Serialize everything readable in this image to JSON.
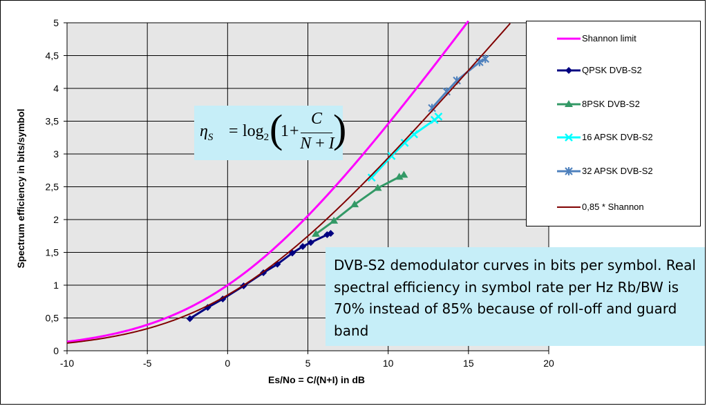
{
  "chart_data": {
    "type": "line",
    "xlabel": "Es/No = C/(N+I) in dB",
    "ylabel": "Spectrum efficiency in bits/symbol",
    "xlim": [
      -10,
      20
    ],
    "ylim": [
      0,
      5
    ],
    "xticks": [
      -10,
      -5,
      0,
      5,
      10,
      15,
      20
    ],
    "xtick_labels": [
      "-10",
      "-5",
      "0",
      "5",
      "10",
      "15",
      "20"
    ],
    "yticks": [
      0,
      0.5,
      1,
      1.5,
      2,
      2.5,
      3,
      3.5,
      4,
      4.5,
      5
    ],
    "ytick_labels": [
      "0",
      "0,5",
      "1",
      "1,5",
      "2",
      "2,5",
      "3",
      "3,5",
      "4",
      "4,5",
      "5"
    ],
    "grid": true,
    "legend_position": "right",
    "series": [
      {
        "name": "Shannon limit",
        "color": "#ff00ff",
        "marker": "none",
        "formula": "log2(1+10^(x/10))",
        "x_range": [
          -10,
          15.0
        ]
      },
      {
        "name": "QPSK DVB-S2",
        "color": "#000080",
        "marker": "diamond",
        "x": [
          -2.35,
          -1.24,
          -0.3,
          1.0,
          2.23,
          3.1,
          4.03,
          4.68,
          5.18,
          6.2,
          6.42
        ],
        "y": [
          0.49,
          0.66,
          0.79,
          0.99,
          1.19,
          1.32,
          1.49,
          1.59,
          1.65,
          1.77,
          1.79
        ]
      },
      {
        "name": "8PSK DVB-S2",
        "color": "#339966",
        "marker": "triangle",
        "x": [
          5.5,
          6.62,
          7.91,
          9.35,
          10.69,
          10.98
        ],
        "y": [
          1.78,
          1.98,
          2.23,
          2.48,
          2.65,
          2.68
        ]
      },
      {
        "name": "16 APSK DVB-S2",
        "color": "#00ffff",
        "marker": "x",
        "x": [
          8.97,
          10.21,
          11.03,
          11.61,
          12.89,
          13.13
        ],
        "y": [
          2.64,
          2.97,
          3.17,
          3.3,
          3.52,
          3.57
        ]
      },
      {
        "name": "32 APSK DVB-S2",
        "color": "#4f81bd",
        "marker": "star",
        "x": [
          12.73,
          13.64,
          14.28,
          15.69,
          16.05
        ],
        "y": [
          3.7,
          3.95,
          4.12,
          4.4,
          4.45
        ]
      },
      {
        "name": "0,85 * Shannon",
        "color": "#800000",
        "marker": "none",
        "formula": "0.85*log2(1+10^(x/10))",
        "x_range": [
          -10,
          17.6
        ]
      }
    ]
  },
  "formula": {
    "eta": "η",
    "eta_sub": "S",
    "equals": "=",
    "log": "log",
    "log_sub": "2",
    "paren_open": "(",
    "one": "1",
    "plus": "+",
    "numerator": "C",
    "denominator": "N + I",
    "den_n": "N",
    "den_plus": "+",
    "den_i": "I",
    "paren_close": ")"
  },
  "note": "DVB-S2 demodulator curves in bits per symbol. Real spectral efficiency in symbol rate per Hz Rb/BW is 70% instead of 85% because of roll-off and guard band"
}
